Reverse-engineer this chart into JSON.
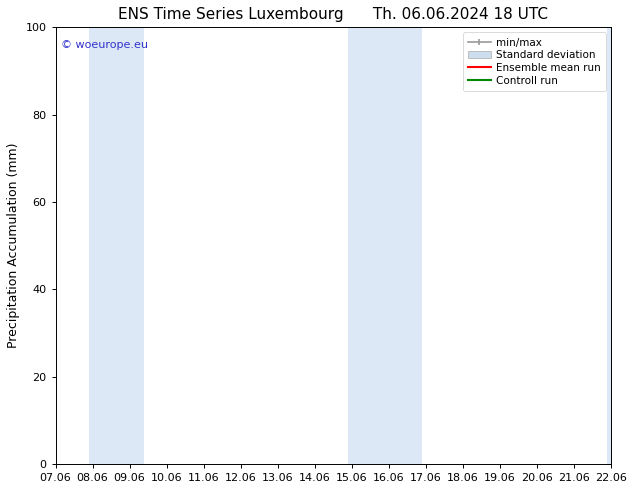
{
  "title_left": "ENS Time Series Luxembourg",
  "title_right": "Th. 06.06.2024 18 UTC",
  "ylabel": "Precipitation Accumulation (mm)",
  "watermark": "© woeurope.eu",
  "ylim": [
    0,
    100
  ],
  "xlim": [
    0,
    15
  ],
  "xtick_positions": [
    0,
    1,
    2,
    3,
    4,
    5,
    6,
    7,
    8,
    9,
    10,
    11,
    12,
    13,
    14,
    15
  ],
  "xtick_labels": [
    "07.06",
    "08.06",
    "09.06",
    "10.06",
    "11.06",
    "12.06",
    "13.06",
    "14.06",
    "15.06",
    "16.06",
    "17.06",
    "18.06",
    "19.06",
    "20.06",
    "21.06",
    "22.06"
  ],
  "ytick_labels": [
    0,
    20,
    40,
    60,
    80,
    100
  ],
  "shaded_bands": [
    {
      "x_start": 0.9,
      "x_end": 2.4
    },
    {
      "x_start": 7.9,
      "x_end": 9.9
    },
    {
      "x_start": 14.9,
      "x_end": 15.1
    }
  ],
  "shade_color": "#dce8f5",
  "legend_entries": [
    {
      "label": "min/max",
      "color": "#999999",
      "lw": 1.2,
      "style": "minmax"
    },
    {
      "label": "Standard deviation",
      "color": "#aaaaaa",
      "lw": 5,
      "style": "bar"
    },
    {
      "label": "Ensemble mean run",
      "color": "#ff0000",
      "lw": 1.5,
      "style": "line"
    },
    {
      "label": "Controll run",
      "color": "#008800",
      "lw": 1.5,
      "style": "line"
    }
  ],
  "title_fontsize": 11,
  "axis_fontsize": 9,
  "tick_fontsize": 8,
  "watermark_color": "#3333cc",
  "background_color": "#ffffff",
  "plot_bg_color": "#ffffff"
}
